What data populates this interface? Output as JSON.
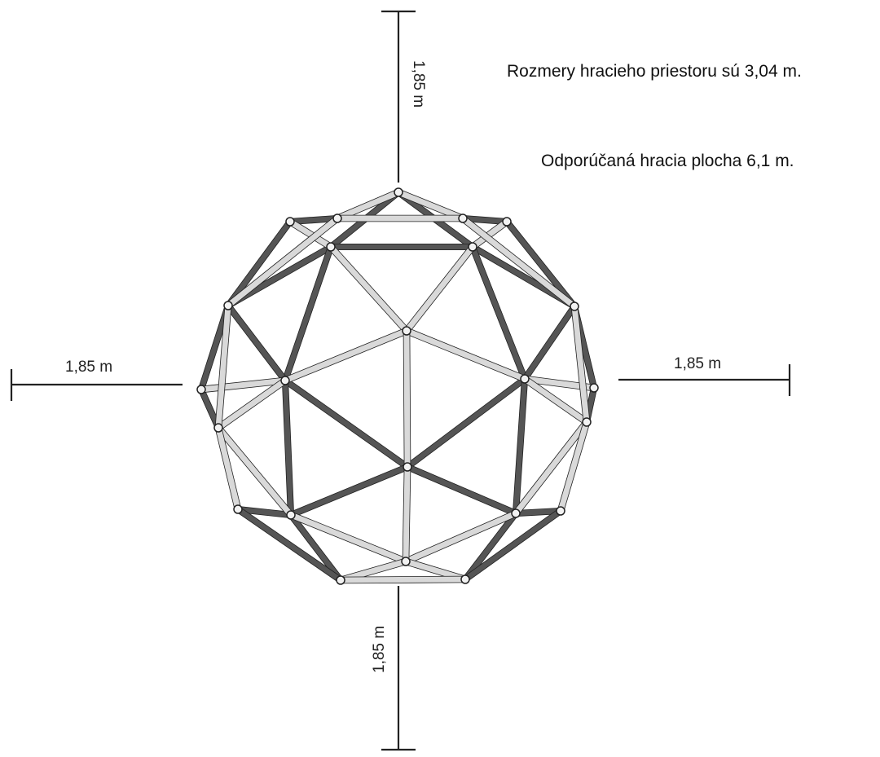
{
  "notes": {
    "play_area": "Rozmery hracieho priestoru sú 3,04 m.",
    "recommended_area": "Odporúčaná hracia plocha 6,1 m."
  },
  "dimensions": {
    "top": "1,85 m",
    "left": "1,85 m",
    "right": "1,85 m",
    "bottom": "1,85 m"
  },
  "colors": {
    "strut_dark": "#555555",
    "strut_light": "#d9d9d9",
    "line": "#222222"
  }
}
